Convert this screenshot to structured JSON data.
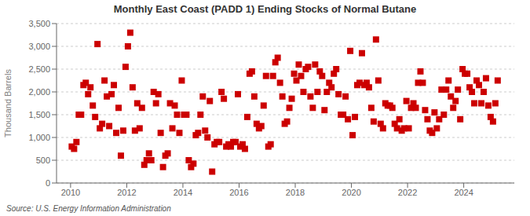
{
  "chart_data": {
    "type": "scatter",
    "title": "Monthly East Coast (PADD 1) Ending Stocks of Normal Butane",
    "ylabel": "Thousand Barrels",
    "annotations": [
      "Source: U.S. Energy Information Administration"
    ],
    "color": "#cc0000",
    "marker": "square",
    "grid": true,
    "xlim": [
      2009.5,
      2025.8
    ],
    "ylim": [
      0,
      3500
    ],
    "xticks": [
      2010,
      2012,
      2014,
      2016,
      2018,
      2020,
      2022,
      2024
    ],
    "yticks": [
      0,
      500,
      {
        "value": 1000,
        "label": "1,000"
      },
      {
        "value": 1500,
        "label": "1,500"
      },
      {
        "value": 2000,
        "label": "2,000"
      },
      {
        "value": 2500,
        "label": "2,500"
      },
      {
        "value": 3000,
        "label": "3,000"
      },
      {
        "value": 3500,
        "label": "3,500"
      }
    ],
    "x": [
      2010.0416666666667,
      2010.125,
      2010.2083333333333,
      2010.2916666666667,
      2010.375,
      2010.4583333333333,
      2010.5416666666667,
      2010.625,
      2010.7083333333333,
      2010.7916666666667,
      2010.875,
      2010.9583333333333,
      2011.0416666666667,
      2011.125,
      2011.2083333333333,
      2011.2916666666667,
      2011.375,
      2011.4583333333333,
      2011.5416666666667,
      2011.625,
      2011.7083333333333,
      2011.7916666666667,
      2011.875,
      2011.9583333333333,
      2012.0416666666667,
      2012.125,
      2012.2083333333333,
      2012.2916666666667,
      2012.375,
      2012.4583333333333,
      2012.5416666666667,
      2012.625,
      2012.7083333333333,
      2012.7916666666667,
      2012.875,
      2012.9583333333333,
      2013.0416666666667,
      2013.125,
      2013.2083333333333,
      2013.2916666666667,
      2013.375,
      2013.4583333333333,
      2013.5416666666667,
      2013.625,
      2013.7083333333333,
      2013.7916666666667,
      2013.875,
      2013.9583333333333,
      2014.0416666666667,
      2014.125,
      2014.2083333333333,
      2014.2916666666667,
      2014.375,
      2014.4583333333333,
      2014.5416666666667,
      2014.625,
      2014.7083333333333,
      2014.7916666666667,
      2014.875,
      2014.9583333333333,
      2015.0416666666667,
      2015.125,
      2015.2083333333333,
      2015.2916666666667,
      2015.375,
      2015.4583333333333,
      2015.5416666666667,
      2015.625,
      2015.7083333333333,
      2015.7916666666667,
      2015.875,
      2015.9583333333333,
      2016.0416666666667,
      2016.125,
      2016.2083333333333,
      2016.2916666666667,
      2016.375,
      2016.4583333333333,
      2016.5416666666667,
      2016.625,
      2016.7083333333333,
      2016.7916666666667,
      2016.875,
      2016.9583333333333,
      2017.0416666666667,
      2017.125,
      2017.2083333333333,
      2017.2916666666667,
      2017.375,
      2017.4583333333333,
      2017.5416666666667,
      2017.625,
      2017.7083333333333,
      2017.7916666666667,
      2017.875,
      2017.9583333333333,
      2018.0416666666667,
      2018.125,
      2018.2083333333333,
      2018.2916666666667,
      2018.375,
      2018.4583333333333,
      2018.5416666666667,
      2018.625,
      2018.7083333333333,
      2018.7916666666667,
      2018.875,
      2018.9583333333333,
      2019.0416666666667,
      2019.125,
      2019.2083333333333,
      2019.2916666666667,
      2019.375,
      2019.4583333333333,
      2019.5416666666667,
      2019.625,
      2019.7083333333333,
      2019.7916666666667,
      2019.875,
      2019.9583333333333,
      2020.0416666666667,
      2020.125,
      2020.2083333333333,
      2020.2916666666667,
      2020.375,
      2020.4583333333333,
      2020.5416666666667,
      2020.625,
      2020.7083333333333,
      2020.7916666666667,
      2020.875,
      2020.9583333333333,
      2021.0416666666667,
      2021.125,
      2021.2083333333333,
      2021.2916666666667,
      2021.375,
      2021.4583333333333,
      2021.5416666666667,
      2021.625,
      2021.7083333333333,
      2021.7916666666667,
      2021.875,
      2021.9583333333333,
      2022.0416666666667,
      2022.125,
      2022.2083333333333,
      2022.2916666666667,
      2022.375,
      2022.4583333333333,
      2022.5416666666667,
      2022.625,
      2022.7083333333333,
      2022.7916666666667,
      2022.875,
      2022.9583333333333,
      2023.0416666666667,
      2023.125,
      2023.2083333333333,
      2023.2916666666667,
      2023.375,
      2023.4583333333333,
      2023.5416666666667,
      2023.625,
      2023.7083333333333,
      2023.7916666666667,
      2023.875,
      2023.9583333333333,
      2024.0416666666667,
      2024.125,
      2024.2083333333333,
      2024.2916666666667,
      2024.375,
      2024.4583333333333,
      2024.5416666666667,
      2024.625,
      2024.7083333333333,
      2024.7916666666667,
      2024.875,
      2024.9583333333333,
      2025.0416666666667,
      2025.125,
      2025.2083333333333
    ],
    "values": [
      800,
      750,
      900,
      1500,
      1500,
      2150,
      2200,
      1950,
      2100,
      1700,
      1450,
      3050,
      1200,
      1300,
      2250,
      1900,
      1250,
      1950,
      2150,
      1100,
      1650,
      600,
      1150,
      2550,
      3000,
      3300,
      2100,
      1150,
      1750,
      1200,
      1650,
      400,
      500,
      650,
      500,
      2000,
      1750,
      1950,
      1100,
      350,
      600,
      650,
      1750,
      1200,
      1700,
      1500,
      1100,
      2250,
      1500,
      1500,
      500,
      350,
      425,
      1050,
      1100,
      1500,
      1900,
      1150,
      1000,
      1800,
      250,
      850,
      900,
      900,
      2000,
      1850,
      800,
      850,
      800,
      900,
      900,
      1950,
      800,
      850,
      750,
      1450,
      2400,
      2450,
      1900,
      1300,
      1200,
      1250,
      1700,
      2350,
      800,
      850,
      2350,
      2650,
      2750,
      2200,
      1900,
      1300,
      1350,
      1650,
      1850,
      2400,
      2250,
      2600,
      2350,
      2000,
      2500,
      2550,
      1900,
      1650,
      2600,
      2000,
      2450,
      2350,
      1600,
      2000,
      2200,
      2100,
      2400,
      2500,
      1950,
      1500,
      1500,
      1900,
      1400,
      2900,
      1050,
      1450,
      2150,
      2200,
      2850,
      2150,
      2200,
      2100,
      1650,
      1350,
      3150,
      2250,
      1300,
      1200,
      1750,
      1700,
      1700,
      1650,
      1300,
      1200,
      1400,
      1150,
      1200,
      1800,
      1200,
      1650,
      1750,
      1650,
      2200,
      2450,
      2200,
      1600,
      1400,
      1150,
      1100,
      1550,
      1200,
      1400,
      2050,
      1500,
      2050,
      2250,
      1900,
      1650,
      1800,
      2050,
      1400,
      2500,
      2400,
      2400,
      2100,
      2000,
      1750,
      2250,
      2150,
      1750,
      2000,
      2300,
      1700,
      1450,
      1350,
      1750,
      2250
    ]
  }
}
